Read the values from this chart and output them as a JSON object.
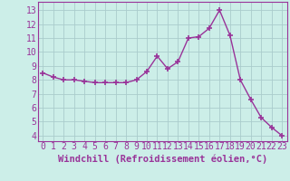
{
  "x": [
    0,
    1,
    2,
    3,
    4,
    5,
    6,
    7,
    8,
    9,
    10,
    11,
    12,
    13,
    14,
    15,
    16,
    17,
    18,
    19,
    20,
    21,
    22,
    23
  ],
  "y": [
    8.5,
    8.2,
    8.0,
    8.0,
    7.9,
    7.8,
    7.8,
    7.8,
    7.8,
    8.0,
    8.6,
    9.7,
    8.8,
    9.3,
    11.0,
    11.1,
    11.7,
    13.0,
    11.2,
    8.0,
    6.6,
    5.3,
    4.6,
    4.0
  ],
  "line_color": "#993399",
  "marker": "+",
  "marker_size": 4,
  "marker_lw": 1.2,
  "bg_color": "#cceee8",
  "grid_color": "#aacccc",
  "xlabel": "Windchill (Refroidissement éolien,°C)",
  "xlabel_fontsize": 7.5,
  "xtick_labels": [
    "0",
    "1",
    "2",
    "3",
    "4",
    "5",
    "6",
    "7",
    "8",
    "9",
    "10",
    "11",
    "12",
    "13",
    "14",
    "15",
    "16",
    "17",
    "18",
    "19",
    "20",
    "21",
    "22",
    "23"
  ],
  "ytick_vals": [
    4,
    5,
    6,
    7,
    8,
    9,
    10,
    11,
    12,
    13
  ],
  "ytick_labels": [
    "4",
    "5",
    "6",
    "7",
    "8",
    "9",
    "10",
    "11",
    "12",
    "13"
  ],
  "ylim": [
    3.6,
    13.6
  ],
  "xlim": [
    -0.5,
    23.5
  ],
  "tick_fontsize": 7,
  "line_width": 1.0
}
